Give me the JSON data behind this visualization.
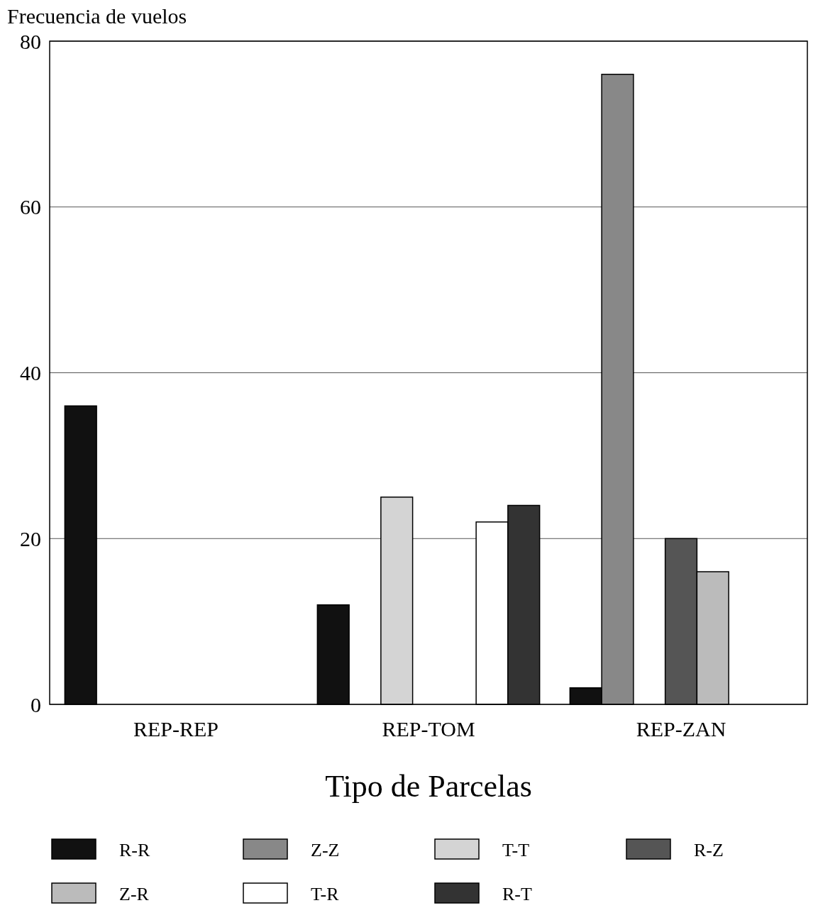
{
  "chart_data": {
    "type": "bar",
    "ylabel": "Frecuencia de vuelos",
    "xlabel": "Tipo de Parcelas",
    "categories": [
      "REP-REP",
      "REP-TOM",
      "REP-ZAN"
    ],
    "series": [
      {
        "name": "R-R",
        "color": "#111111",
        "values": [
          36,
          12,
          2
        ]
      },
      {
        "name": "Z-Z",
        "color": "#888888",
        "values": [
          0,
          0,
          76
        ]
      },
      {
        "name": "T-T",
        "color": "#d4d4d4",
        "values": [
          0,
          25,
          0
        ]
      },
      {
        "name": "R-Z",
        "color": "#555555",
        "values": [
          0,
          0,
          20
        ]
      },
      {
        "name": "Z-R",
        "color": "#bbbbbb",
        "values": [
          0,
          0,
          16
        ]
      },
      {
        "name": "T-R",
        "color": "#ffffff",
        "values": [
          0,
          22,
          0
        ]
      },
      {
        "name": "R-T",
        "color": "#333333",
        "values": [
          0,
          24,
          0
        ]
      }
    ],
    "ylim": [
      0,
      80
    ],
    "yticks": [
      0,
      20,
      40,
      60,
      80
    ],
    "grid": "y",
    "legend": "bottom"
  }
}
